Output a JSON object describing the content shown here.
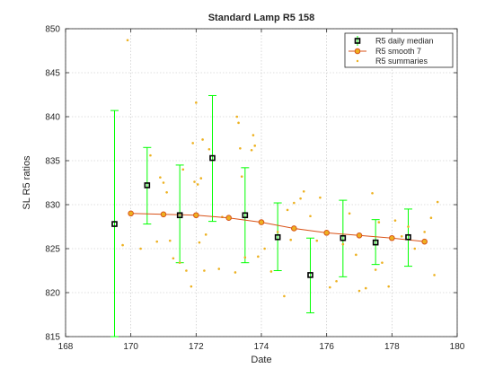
{
  "chart_data": {
    "type": "scatter",
    "title": "Standard Lamp R5   158",
    "xlabel": "Date",
    "ylabel": "SL R5  ratios",
    "xlim": [
      168,
      180
    ],
    "ylim": [
      815,
      850
    ],
    "xticks": [
      168,
      170,
      172,
      174,
      176,
      178,
      180
    ],
    "yticks": [
      815,
      820,
      825,
      830,
      835,
      840,
      845,
      850
    ],
    "xtick_labels": [
      "168",
      "170",
      "172",
      "174",
      "176",
      "178",
      "180"
    ],
    "ytick_labels": [
      "815",
      "820",
      "825",
      "830",
      "835",
      "840",
      "845",
      "850"
    ],
    "grid": true,
    "legend_position": "top-right",
    "colors": {
      "median": "#000000",
      "errorbar": "#00ff00",
      "smooth": "#d95319",
      "smooth_marker_face": "#edb120",
      "summaries": "#edb120"
    },
    "series": [
      {
        "name": "R5 daily median",
        "x": [
          169.5,
          170.5,
          171.5,
          172.5,
          173.5,
          174.5,
          175.5,
          176.5,
          177.5,
          178.5
        ],
        "y": [
          827.8,
          832.2,
          828.8,
          835.3,
          828.8,
          826.3,
          822.0,
          826.2,
          825.7,
          826.3
        ],
        "error_low": [
          815.0,
          827.8,
          823.4,
          828.1,
          823.4,
          822.5,
          817.7,
          821.8,
          823.2,
          823.0
        ],
        "error_high": [
          840.7,
          836.5,
          834.5,
          842.4,
          834.2,
          830.2,
          826.2,
          830.5,
          828.3,
          829.5
        ]
      },
      {
        "name": "R5 smooth 7",
        "x": [
          170,
          171,
          172,
          173,
          174,
          175,
          176,
          177,
          178,
          179
        ],
        "y": [
          829.0,
          828.9,
          828.8,
          828.5,
          828.0,
          827.3,
          826.8,
          826.5,
          826.2,
          825.8
        ]
      },
      {
        "name": "R5 summaries",
        "x": [
          169.75,
          169.9,
          170.3,
          170.6,
          170.8,
          170.9,
          171.0,
          171.1,
          171.2,
          171.3,
          171.5,
          171.6,
          171.7,
          171.85,
          171.9,
          171.95,
          172.0,
          172.05,
          172.1,
          172.15,
          172.2,
          172.25,
          172.3,
          172.4,
          172.7,
          172.8,
          173.2,
          173.25,
          173.3,
          173.35,
          173.4,
          173.5,
          173.7,
          173.75,
          173.8,
          173.9,
          174.1,
          174.3,
          174.5,
          174.7,
          174.8,
          174.9,
          175.0,
          175.2,
          175.3,
          175.5,
          175.7,
          175.8,
          176.1,
          176.3,
          176.5,
          176.7,
          176.9,
          177.0,
          177.2,
          177.4,
          177.5,
          177.6,
          177.7,
          177.9,
          178.1,
          178.3,
          178.5,
          178.7,
          179.0,
          179.2,
          179.3,
          179.4
        ],
        "y": [
          825.4,
          848.7,
          825.0,
          835.6,
          825.8,
          833.1,
          832.5,
          831.4,
          825.9,
          823.9,
          823.4,
          834.0,
          822.5,
          820.7,
          837.0,
          832.6,
          841.6,
          832.3,
          825.7,
          833.0,
          837.4,
          822.5,
          826.6,
          836.3,
          822.7,
          828.6,
          822.3,
          840.0,
          839.3,
          836.4,
          833.2,
          824.0,
          836.2,
          837.9,
          836.7,
          824.1,
          825.0,
          822.4,
          826.9,
          819.6,
          829.4,
          826.0,
          830.2,
          830.7,
          831.5,
          828.7,
          825.9,
          830.8,
          820.6,
          821.3,
          825.5,
          829.0,
          824.3,
          820.2,
          820.5,
          831.3,
          822.6,
          828.0,
          823.4,
          820.7,
          828.2,
          826.4,
          827.5,
          825.0,
          826.9,
          828.5,
          822.0,
          830.3
        ]
      }
    ]
  }
}
